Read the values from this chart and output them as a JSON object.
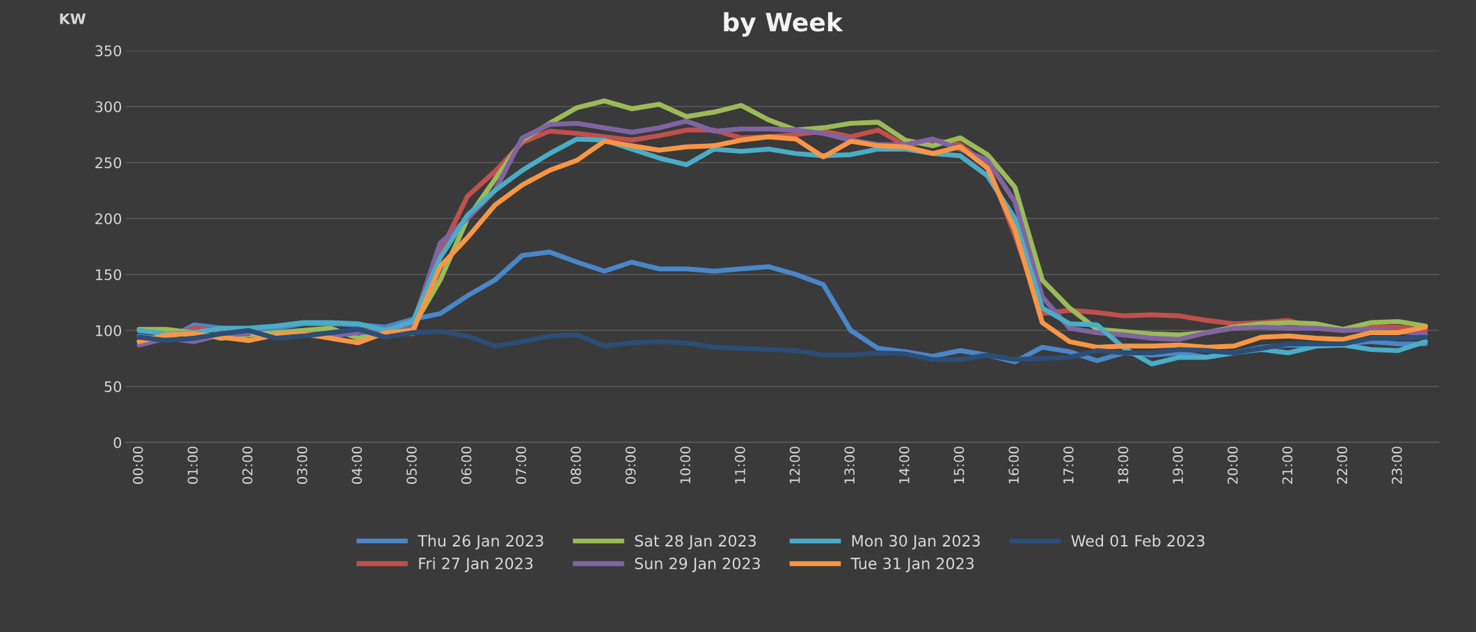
{
  "chart_data": {
    "type": "line",
    "title": "by Week",
    "ylabel": "KW",
    "categories": [
      "00:00",
      null,
      "01:00",
      null,
      "02:00",
      null,
      "03:00",
      null,
      "04:00",
      null,
      "05:00",
      null,
      "06:00",
      null,
      "07:00",
      null,
      "08:00",
      null,
      "09:00",
      null,
      "10:00",
      null,
      "11:00",
      null,
      "12:00",
      null,
      "13:00",
      null,
      "14:00",
      null,
      "15:00",
      null,
      "16:00",
      null,
      "17:00",
      null,
      "18:00",
      null,
      "19:00",
      null,
      "20:00",
      null,
      "21:00",
      null,
      "22:00",
      null,
      "23:00",
      null
    ],
    "ylim": [
      0,
      350
    ],
    "yticks": [
      0,
      50,
      100,
      150,
      200,
      250,
      300,
      350
    ],
    "grid": "y",
    "legend": "bottom",
    "marker": "none",
    "line_style": "solid",
    "series": [
      {
        "name": "Thu 26 Jan 2023",
        "color": "#4a86c8",
        "values": [
          95,
          92,
          105,
          102,
          100,
          102,
          106,
          106,
          105,
          103,
          110,
          115,
          131,
          145,
          167,
          170,
          161,
          153,
          161,
          155,
          155,
          153,
          155,
          157,
          150,
          141,
          100,
          84,
          81,
          77,
          82,
          78,
          72,
          85,
          81,
          73,
          80,
          78,
          80,
          76,
          80,
          85,
          87,
          86,
          88,
          90,
          88,
          88
        ]
      },
      {
        "name": "Fri 27 Jan 2023",
        "color": "#c0504d",
        "values": [
          90,
          95,
          102,
          100,
          98,
          97,
          98,
          null,
          100,
          98,
          97,
          170,
          220,
          242,
          268,
          278,
          276,
          273,
          270,
          274,
          279,
          279,
          272,
          273,
          275,
          278,
          273,
          279,
          265,
          270,
          266,
          248,
          185,
          115,
          118,
          116,
          113,
          114,
          113,
          109,
          106,
          107,
          109,
          102,
          100,
          103,
          103,
          100
        ]
      },
      {
        "name": "Sat 28 Jan 2023",
        "color": "#9bbb59",
        "values": [
          101,
          101,
          98,
          93,
          96,
          98,
          100,
          102,
          93,
          100,
          103,
          145,
          200,
          235,
          270,
          285,
          299,
          305,
          298,
          302,
          291,
          295,
          301,
          288,
          279,
          281,
          285,
          286,
          270,
          265,
          272,
          257,
          228,
          145,
          120,
          101,
          99,
          97,
          96,
          98,
          103,
          106,
          107,
          106,
          101,
          107,
          108,
          104
        ]
      },
      {
        "name": "Sun 29 Jan 2023",
        "color": "#8064a2",
        "values": [
          87,
          93,
          90,
          96,
          97,
          null,
          97,
          95,
          98,
          100,
          105,
          178,
          200,
          225,
          272,
          284,
          285,
          281,
          277,
          281,
          287,
          278,
          280,
          280,
          279,
          276,
          270,
          266,
          266,
          271,
          262,
          252,
          215,
          130,
          102,
          98,
          96,
          93,
          92,
          98,
          102,
          103,
          102,
          102,
          100,
          101,
          99,
          97
        ]
      },
      {
        "name": "Mon 30 Jan 2023",
        "color": "#4bacc6",
        "values": [
          100,
          97,
          98,
          102,
          102,
          104,
          107,
          107,
          106,
          100,
          108,
          165,
          203,
          225,
          243,
          258,
          271,
          270,
          262,
          254,
          248,
          262,
          260,
          262,
          258,
          256,
          257,
          262,
          262,
          258,
          256,
          238,
          200,
          120,
          106,
          105,
          84,
          70,
          76,
          76,
          80,
          83,
          80,
          86,
          87,
          83,
          82,
          90
        ]
      },
      {
        "name": "Tue 31 Jan 2023",
        "color": "#f79646",
        "values": [
          90,
          96,
          97,
          94,
          91,
          96,
          97,
          93,
          89,
          98,
          100,
          157,
          183,
          212,
          230,
          243,
          252,
          269,
          265,
          261,
          264,
          265,
          270,
          273,
          271,
          255,
          269,
          265,
          264,
          258,
          264,
          245,
          190,
          107,
          90,
          85,
          86,
          86,
          87,
          85,
          86,
          94,
          95,
          93,
          92,
          98,
          98,
          103
        ]
      },
      {
        "name": "Wed 01 Feb 2023",
        "color": "#2c4d75",
        "values": [
          94,
          91,
          93,
          97,
          100,
          93,
          95,
          98,
          101,
          94,
          98,
          99,
          95,
          86,
          90,
          95,
          96,
          86,
          89,
          90,
          89,
          85,
          84,
          83,
          82,
          78,
          78,
          80,
          79,
          74,
          74,
          78,
          74,
          75,
          76,
          82,
          80,
          80,
          83,
          82,
          80,
          84,
          88,
          88,
          88,
          93,
          93,
          94
        ]
      }
    ]
  }
}
